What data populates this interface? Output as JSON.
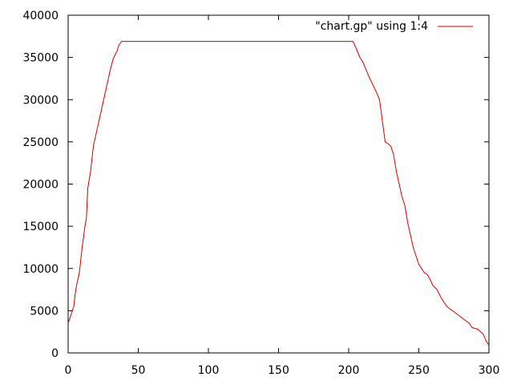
{
  "chart_data": {
    "type": "line",
    "title": "",
    "xlabel": "",
    "ylabel": "",
    "xlim": [
      0,
      300
    ],
    "ylim": [
      0,
      40000
    ],
    "xticks": [
      0,
      50,
      100,
      150,
      200,
      250,
      300
    ],
    "yticks": [
      0,
      5000,
      10000,
      15000,
      20000,
      25000,
      30000,
      35000,
      40000
    ],
    "grid": false,
    "legend_position": "top-right",
    "series": [
      {
        "name": "\"chart.gp\" using 1:4",
        "color": "#cc0000",
        "x": [
          0,
          2,
          4,
          5,
          6,
          8,
          10,
          12,
          13,
          14,
          16,
          18,
          20,
          22,
          24,
          26,
          28,
          30,
          32,
          34,
          35,
          36,
          38,
          40,
          60,
          100,
          150,
          200,
          203,
          205,
          208,
          210,
          215,
          218,
          220,
          222,
          224,
          226,
          228,
          230,
          232,
          234,
          236,
          238,
          240,
          242,
          244,
          246,
          248,
          250,
          252,
          254,
          256,
          258,
          260,
          263,
          266,
          270,
          274,
          278,
          282,
          286,
          288,
          292,
          296,
          298,
          300
        ],
        "y": [
          3500,
          4500,
          5500,
          7000,
          8000,
          9500,
          12500,
          15000,
          16000,
          19500,
          21500,
          24500,
          26000,
          27500,
          29000,
          30500,
          32000,
          33500,
          34800,
          35500,
          35800,
          36400,
          36900,
          36900,
          36900,
          36900,
          36900,
          36900,
          36900,
          36200,
          35000,
          34500,
          32500,
          31500,
          30800,
          30000,
          27500,
          25000,
          24800,
          24500,
          23500,
          21500,
          20000,
          18500,
          17500,
          15500,
          14000,
          12500,
          11500,
          10500,
          10000,
          9500,
          9300,
          8700,
          8000,
          7500,
          6500,
          5500,
          5000,
          4500,
          4000,
          3500,
          3000,
          2800,
          2200,
          1400,
          900
        ]
      }
    ]
  }
}
